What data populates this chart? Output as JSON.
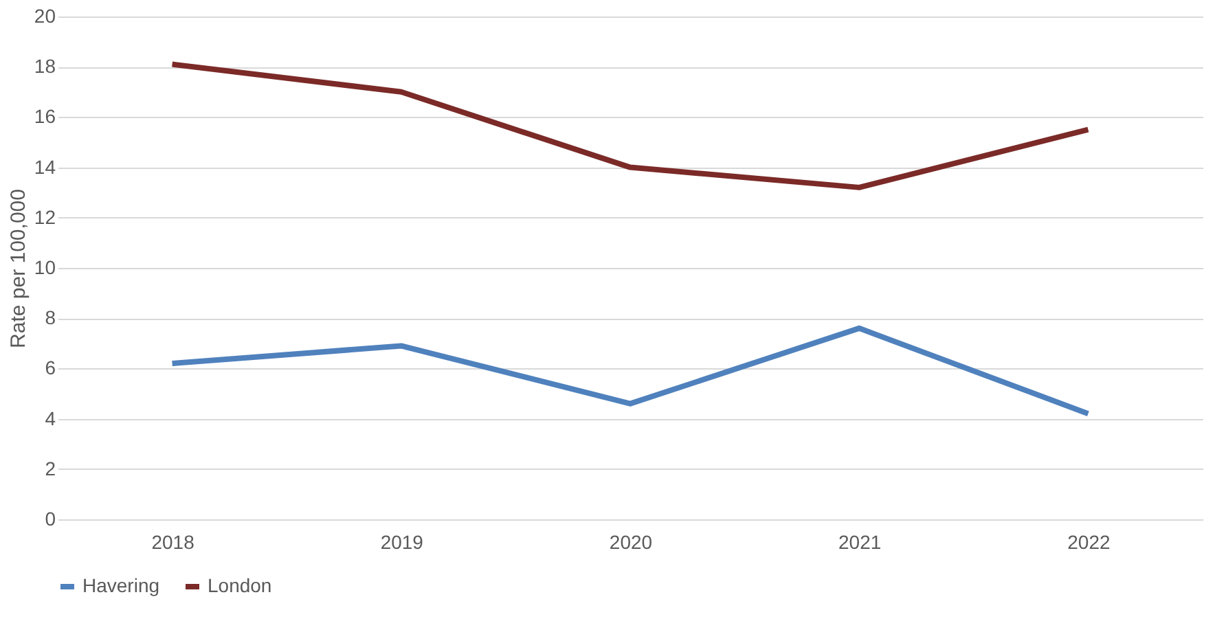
{
  "chart_data": {
    "type": "line",
    "ylabel": "Rate per 100,000",
    "categories": [
      "2018",
      "2019",
      "2020",
      "2021",
      "2022"
    ],
    "series": [
      {
        "name": "Havering",
        "color": "#4f81bd",
        "values": [
          6.2,
          6.9,
          4.6,
          7.6,
          4.2
        ]
      },
      {
        "name": "London",
        "color": "#7b2a27",
        "values": [
          18.1,
          17.0,
          14.0,
          13.2,
          15.5
        ]
      }
    ],
    "ylim": [
      0,
      20
    ],
    "yticks": [
      0,
      2,
      4,
      6,
      8,
      10,
      12,
      14,
      16,
      18,
      20
    ],
    "grid": "y",
    "legend": "bottom",
    "marker": "none",
    "line_style": "solid"
  }
}
